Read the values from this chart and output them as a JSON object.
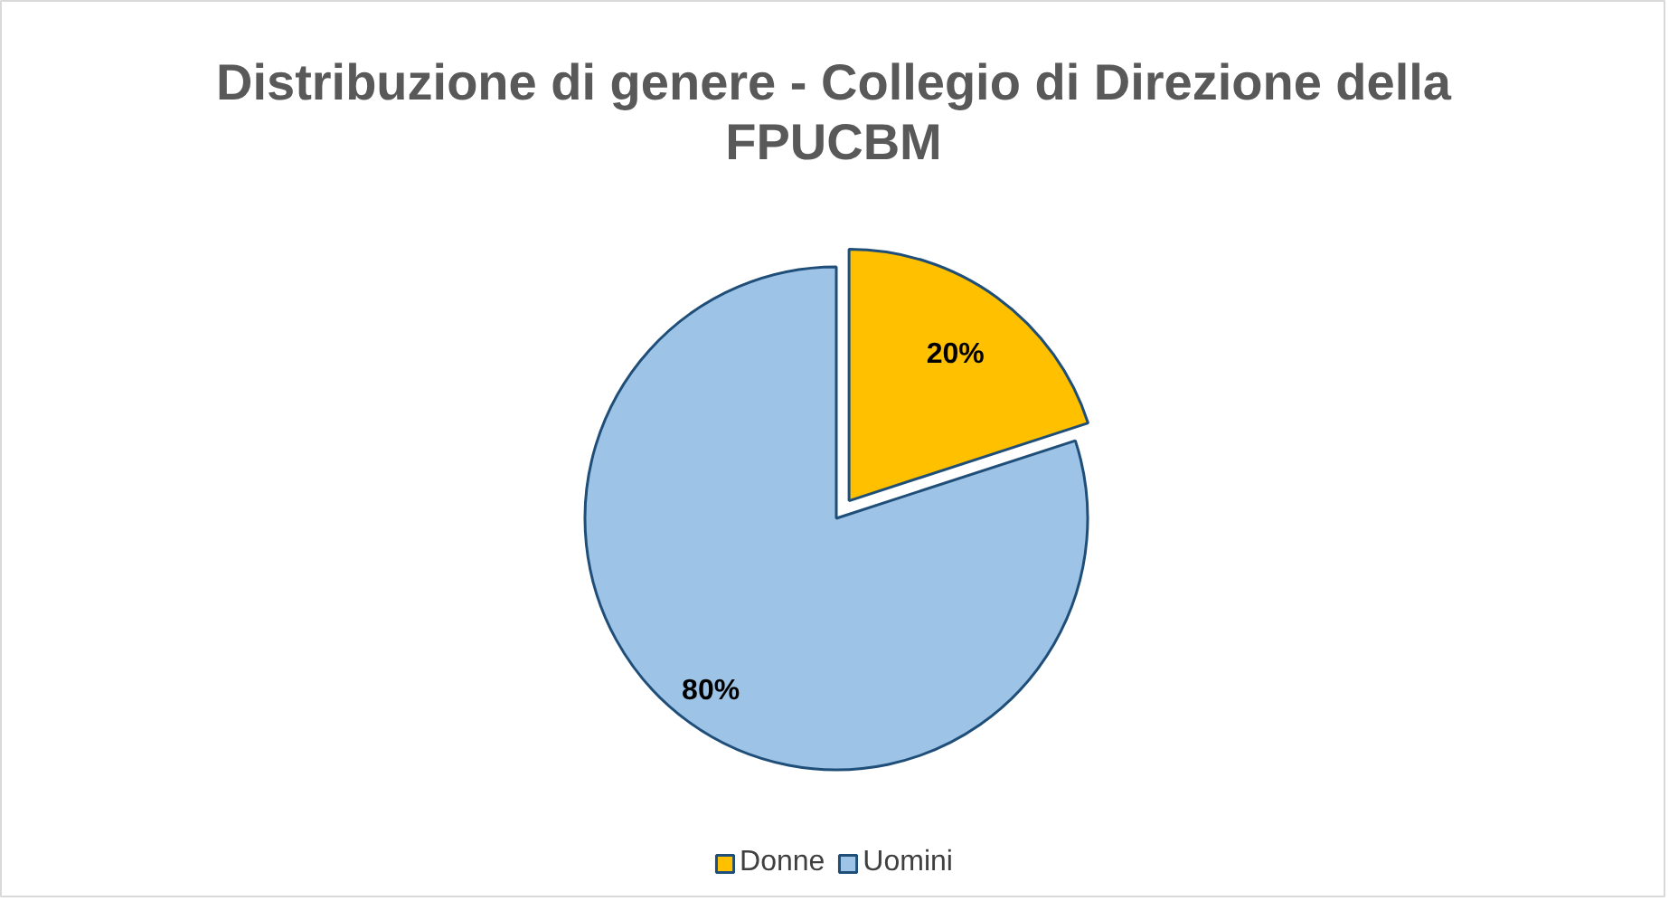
{
  "chart_data": {
    "type": "pie",
    "title": "Distribuzione di genere - Collegio di Direzione della FPUCBM",
    "categories": [
      "Donne",
      "Uomini"
    ],
    "values": [
      20,
      80
    ],
    "colors": [
      "#ffc000",
      "#9dc3e6"
    ],
    "value_labels": [
      "20%",
      "80%"
    ],
    "legend": "bottom"
  }
}
